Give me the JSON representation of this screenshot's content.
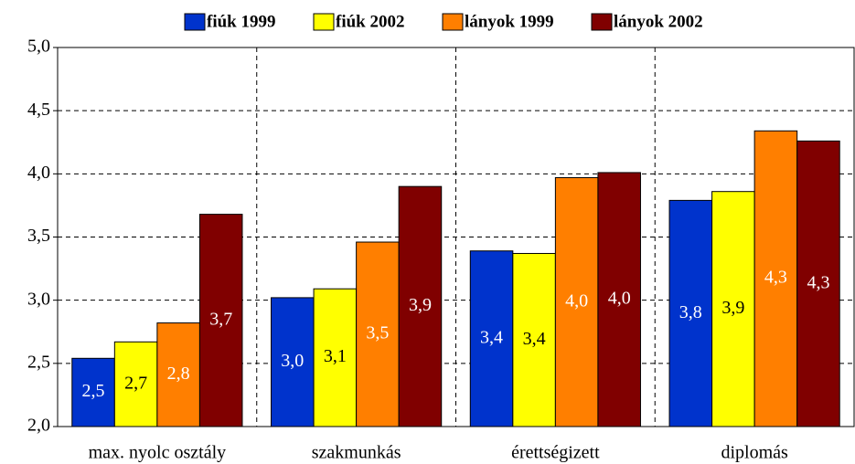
{
  "chart_data": {
    "type": "bar",
    "categories": [
      "max. nyolc osztály",
      "szakmunkás",
      "érettségizett",
      "diplomás"
    ],
    "series": [
      {
        "name": "fiúk 1999",
        "color": "#0033cc",
        "values": [
          2.54,
          3.02,
          3.39,
          3.79
        ],
        "value_labels": [
          "2,5",
          "3,0",
          "3,4",
          "3,8"
        ]
      },
      {
        "name": "fiúk 2002",
        "color": "#ffff00",
        "values": [
          2.67,
          3.09,
          3.37,
          3.86
        ],
        "value_labels": [
          "2,7",
          "3,1",
          "3,4",
          "3,9"
        ]
      },
      {
        "name": "lányok 1999",
        "color": "#ff7f00",
        "values": [
          2.82,
          3.46,
          3.97,
          4.34
        ],
        "value_labels": [
          "2,8",
          "3,5",
          "4,0",
          "4,3"
        ]
      },
      {
        "name": "lányok 2002",
        "color": "#800000",
        "values": [
          3.68,
          3.9,
          4.01,
          4.26
        ],
        "value_labels": [
          "3,7",
          "3,9",
          "4,0",
          "4,3"
        ]
      }
    ],
    "ylim": [
      2,
      5
    ],
    "yticks": [
      {
        "value": 2,
        "label": "2,0"
      },
      {
        "value": 2.5,
        "label": "2,5"
      },
      {
        "value": 3,
        "label": "3,0"
      },
      {
        "value": 3.5,
        "label": "3,5"
      },
      {
        "value": 4,
        "label": "4,0"
      },
      {
        "value": 4.5,
        "label": "4,5"
      },
      {
        "value": 5,
        "label": "5,0"
      }
    ],
    "grid": true,
    "legend": "top"
  }
}
